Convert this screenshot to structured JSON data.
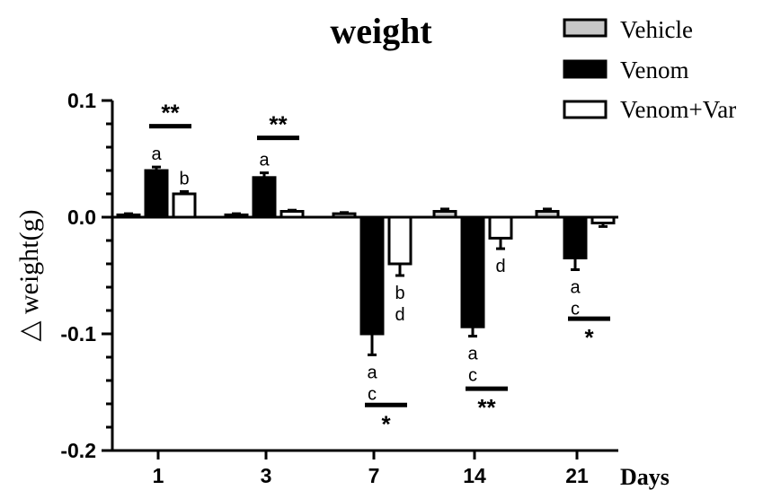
{
  "chart_data": {
    "type": "bar",
    "title": "weight",
    "ylabel": "△ weight(g)",
    "xlabel": "Days",
    "ylim": [
      -0.2,
      0.1
    ],
    "yticks": [
      0.1,
      0.0,
      -0.1,
      -0.2
    ],
    "ytick_labels": [
      "0.1",
      "0.0",
      "-0.1",
      "-0.2"
    ],
    "categories": [
      "1",
      "3",
      "7",
      "14",
      "21"
    ],
    "series": [
      {
        "name": "Vehicle",
        "color": "#c8c8c8",
        "values": [
          0.002,
          0.002,
          0.003,
          0.005,
          0.005
        ],
        "errors": [
          0.001,
          0.001,
          0.001,
          0.002,
          0.002
        ]
      },
      {
        "name": "Venom",
        "color": "#000000",
        "values": [
          0.04,
          0.034,
          -0.1,
          -0.094,
          -0.035
        ],
        "errors": [
          0.003,
          0.004,
          0.018,
          0.008,
          0.01
        ]
      },
      {
        "name": "Venom+Var",
        "color": "#ffffff",
        "values": [
          0.02,
          0.005,
          -0.04,
          -0.018,
          -0.005
        ],
        "errors": [
          0.002,
          0.001,
          0.01,
          0.009,
          0.003
        ]
      }
    ],
    "letter_annotations": [
      {
        "category": "1",
        "series": "Venom",
        "text": [
          "a"
        ]
      },
      {
        "category": "1",
        "series": "Venom+Var",
        "text": [
          "b"
        ]
      },
      {
        "category": "3",
        "series": "Venom",
        "text": [
          "a"
        ]
      },
      {
        "category": "7",
        "series": "Venom",
        "text": [
          "a",
          "c"
        ]
      },
      {
        "category": "7",
        "series": "Venom+Var",
        "text": [
          "b",
          "d"
        ]
      },
      {
        "category": "14",
        "series": "Venom",
        "text": [
          "a",
          "c"
        ]
      },
      {
        "category": "14",
        "series": "Venom+Var",
        "text": [
          "d"
        ]
      },
      {
        "category": "21",
        "series": "Venom",
        "text": [
          "a",
          "c"
        ]
      }
    ],
    "significance": [
      {
        "category": "1",
        "text": "**",
        "y": 0.078,
        "label_above": true
      },
      {
        "category": "3",
        "text": "**",
        "y": 0.068,
        "label_above": true
      },
      {
        "category": "7",
        "text": "*",
        "y": -0.161,
        "label_above": false
      },
      {
        "category": "14",
        "text": "**",
        "y": -0.147,
        "label_above": false
      },
      {
        "category": "21",
        "text": "*",
        "y": -0.087,
        "label_above": false
      }
    ],
    "grid": false,
    "legend": "top-right"
  }
}
